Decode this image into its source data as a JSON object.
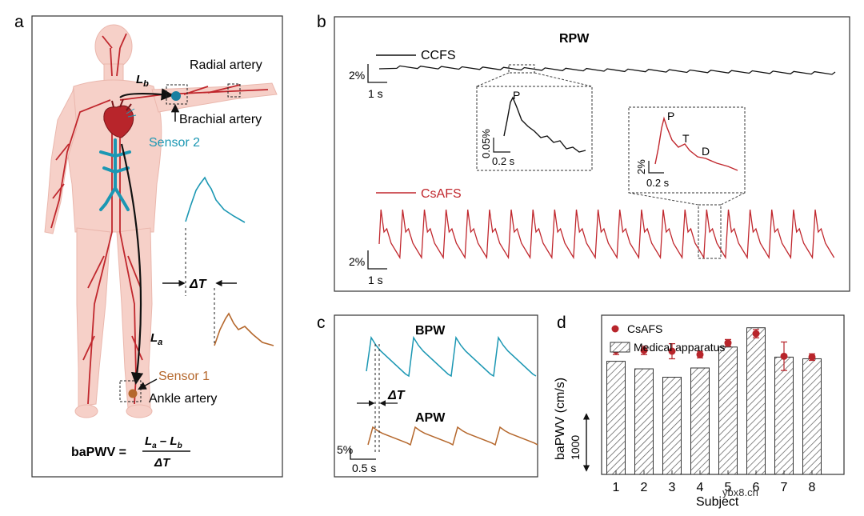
{
  "panel_a": {
    "label": "a",
    "lb": "L",
    "lb_sub": "b",
    "la": "L",
    "la_sub": "a",
    "radial_artery": "Radial artery",
    "brachial_artery": "Brachial artery",
    "sensor2": "Sensor 2",
    "sensor1": "Sensor 1",
    "ankle_artery": "Ankle artery",
    "delta_t": "ΔT",
    "formula_lhs": "baPWV =",
    "formula_la": "L",
    "formula_la_sub": "a",
    "formula_minus": " – ",
    "formula_lb": "L",
    "formula_lb_sub": "b",
    "formula_den": "ΔT"
  },
  "panel_b": {
    "label": "b",
    "title": "RPW",
    "ccfs": "CCFS",
    "csafs": "CsAFS",
    "scale_y1": "2%",
    "scale_x1": "1 s",
    "scale_y2": "2%",
    "scale_x2": "1 s",
    "inset1_peak": "P",
    "inset1_y": "0.05%",
    "inset1_x": "0.2 s",
    "inset2_p": "P",
    "inset2_t": "T",
    "inset2_d": "D",
    "inset2_y": "2%",
    "inset2_x": "0.2 s"
  },
  "panel_c": {
    "label": "c",
    "bpw": "BPW",
    "apw": "APW",
    "delta_t": "ΔT",
    "scale_y": "5%",
    "scale_x": "0.5 s"
  },
  "panel_d": {
    "label": "d",
    "legend_csafs": "CsAFS",
    "legend_medical": "Medical apparatus",
    "ylabel": "baPWV (cm/s)",
    "scale_value": "1000",
    "xlabel": "Subject",
    "watermark": "ybx8.cn"
  },
  "colors": {
    "red": "#c0272d",
    "blue": "#1b97b3",
    "brown": "#b5682d",
    "body": "#f6d0c8",
    "marker": "#b8252b"
  },
  "chart_data": {
    "type": "bar",
    "title": "",
    "xlabel": "Subject",
    "ylabel": "baPWV (cm/s)",
    "categories": [
      "1",
      "2",
      "3",
      "4",
      "5",
      "6",
      "7",
      "8"
    ],
    "series": [
      {
        "name": "Medical apparatus",
        "values": [
          1385,
          1340,
          1290,
          1345,
          1470,
          1585,
          1410,
          1400
        ]
      },
      {
        "name": "CsAFS",
        "values": [
          1450,
          1450,
          1445,
          1425,
          1495,
          1550,
          1415,
          1410
        ],
        "error": [
          25,
          25,
          45,
          20,
          20,
          25,
          85,
          20
        ]
      }
    ],
    "ylim": [
      710,
      1660
    ],
    "scale_bar": 1000
  }
}
